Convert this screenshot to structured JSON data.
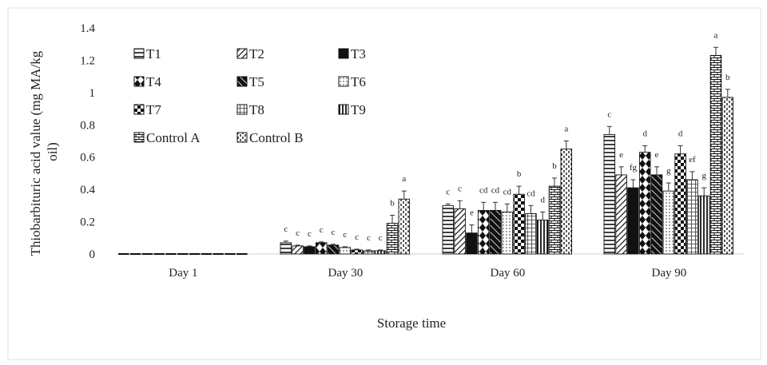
{
  "chart_data": {
    "type": "bar",
    "title": "",
    "xlabel": "Storage time",
    "ylabel": "Thiobarbituric acid value (mg MA/kg oil)",
    "ylim": [
      0,
      1.4
    ],
    "yticks": [
      "0",
      "0.2",
      "0.4",
      "0.6",
      "0.8",
      "1",
      "1.2",
      "1.4"
    ],
    "grid": false,
    "legend_position": "top-left",
    "categories": [
      "Day 1",
      "Day 30",
      "Day 60",
      "Day 90"
    ],
    "series": [
      {
        "name": "T1",
        "pattern": "hlines",
        "values": [
          0,
          0.07,
          0.3,
          0.74
        ],
        "errors": [
          0,
          0.01,
          0.01,
          0.05
        ],
        "labels": [
          "",
          "c",
          "c",
          "c"
        ]
      },
      {
        "name": "T2",
        "pattern": "diag",
        "values": [
          0,
          0.05,
          0.28,
          0.49
        ],
        "errors": [
          0,
          0.005,
          0.05,
          0.05
        ],
        "labels": [
          "",
          "c",
          "c",
          "e"
        ]
      },
      {
        "name": "T3",
        "pattern": "solid",
        "values": [
          0,
          0.045,
          0.13,
          0.41
        ],
        "errors": [
          0,
          0.005,
          0.05,
          0.05
        ],
        "labels": [
          "",
          "c",
          "e",
          "fg"
        ]
      },
      {
        "name": "T4",
        "pattern": "diamonds",
        "values": [
          0,
          0.07,
          0.27,
          0.63
        ],
        "errors": [
          0,
          0.005,
          0.05,
          0.04
        ],
        "labels": [
          "",
          "c",
          "cd",
          "d"
        ]
      },
      {
        "name": "T5",
        "pattern": "wdiag",
        "values": [
          0,
          0.055,
          0.27,
          0.49
        ],
        "errors": [
          0,
          0.005,
          0.05,
          0.05
        ],
        "labels": [
          "",
          "c",
          "cd",
          "e"
        ]
      },
      {
        "name": "T6",
        "pattern": "dots",
        "values": [
          0,
          0.04,
          0.26,
          0.39
        ],
        "errors": [
          0,
          0.005,
          0.05,
          0.05
        ],
        "labels": [
          "",
          "c",
          "cd",
          "g"
        ]
      },
      {
        "name": "T7",
        "pattern": "checker",
        "values": [
          0,
          0.025,
          0.37,
          0.62
        ],
        "errors": [
          0,
          0.005,
          0.05,
          0.05
        ],
        "labels": [
          "",
          "c",
          "b",
          "d"
        ]
      },
      {
        "name": "T8",
        "pattern": "grid",
        "values": [
          0,
          0.02,
          0.25,
          0.46
        ],
        "errors": [
          0,
          0.005,
          0.05,
          0.05
        ],
        "labels": [
          "",
          "c",
          "cd",
          "ef"
        ]
      },
      {
        "name": "T9",
        "pattern": "vlines",
        "values": [
          0,
          0.02,
          0.21,
          0.36
        ],
        "errors": [
          0,
          0.005,
          0.05,
          0.05
        ],
        "labels": [
          "",
          "c",
          "d",
          "g"
        ]
      },
      {
        "name": "Control A",
        "pattern": "brick",
        "values": [
          0,
          0.19,
          0.42,
          1.23
        ],
        "errors": [
          0,
          0.05,
          0.05,
          0.05
        ],
        "labels": [
          "",
          "b",
          "b",
          "a"
        ]
      },
      {
        "name": "Control B",
        "pattern": "dashes",
        "values": [
          0,
          0.34,
          0.65,
          0.97
        ],
        "errors": [
          0,
          0.05,
          0.05,
          0.05
        ],
        "labels": [
          "",
          "a",
          "a",
          "b"
        ]
      }
    ]
  }
}
